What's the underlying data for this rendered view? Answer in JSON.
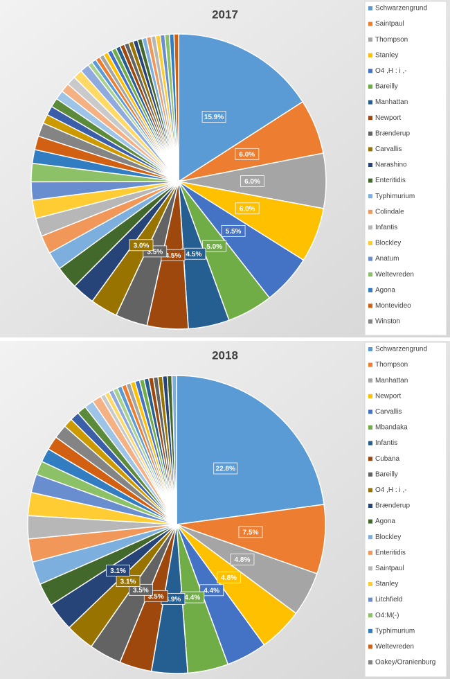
{
  "chart_data": [
    {
      "type": "pie",
      "title": "2017",
      "legend": "right",
      "categories": [
        "Schwarzengrund",
        "Saintpaul",
        "Thompson",
        "Stanley",
        "O4 ,H : i ,-",
        "Bareilly",
        "Manhattan",
        "Newport",
        "Brænderup",
        "Carvallis",
        "Narashino",
        "Enteritidis",
        "Typhimurium",
        "Colindale",
        "Infantis",
        "Blockley",
        "Anatum",
        "Weltevreden",
        "Agona",
        "Montevideo",
        "Winston",
        null,
        null,
        null,
        null,
        null,
        null,
        null,
        null,
        null,
        null,
        null,
        null,
        null,
        null,
        null,
        null,
        null,
        null,
        null,
        null,
        null,
        null,
        null,
        null,
        null,
        null,
        null,
        null,
        null
      ],
      "values": [
        15.9,
        6.0,
        6.0,
        6.0,
        5.5,
        5.0,
        4.5,
        4.5,
        3.5,
        3.0,
        2.5,
        2.5,
        2.0,
        2.0,
        2.0,
        2.0,
        2.0,
        2.0,
        1.5,
        1.5,
        1.5,
        1.0,
        1.0,
        1.0,
        1.0,
        1.0,
        1.0,
        1.0,
        1.0,
        0.5,
        0.5,
        0.5,
        0.5,
        0.5,
        0.5,
        0.5,
        0.5,
        0.5,
        0.5,
        0.5,
        0.5,
        0.5,
        0.5,
        0.5,
        0.5,
        0.5,
        0.5,
        0.5,
        0.5,
        0.5
      ],
      "value_labels": [
        "15.9%",
        "6.0%",
        "6.0%",
        "6.0%",
        "5.5%",
        "5.0%",
        "4.5%",
        "4.5%",
        "3.5%",
        "3.0%",
        null,
        null,
        null,
        null,
        null,
        null,
        null,
        null,
        null,
        null,
        null,
        null,
        null,
        null,
        null,
        null,
        null,
        null,
        null,
        null,
        null,
        null,
        null,
        null,
        null,
        null,
        null,
        null,
        null,
        null,
        null,
        null,
        null,
        null,
        null,
        null,
        null,
        null,
        null,
        null
      ]
    },
    {
      "type": "pie",
      "title": "2018",
      "legend": "right",
      "categories": [
        "Schwarzengrund",
        "Thompson",
        "Manhattan",
        "Newport",
        "Carvallis",
        "Mbandaka",
        "Infantis",
        "Cubana",
        "Bareilly",
        "O4 ,H : i ,-",
        "Brænderup",
        "Agona",
        "Blockley",
        "Enteritidis",
        "Saintpaul",
        "Stanley",
        "Litchfield",
        "O4:M(-)",
        "Typhimurium",
        "Weltevreden",
        "Oakey/Oranienburg",
        null,
        null,
        null,
        null,
        null,
        null,
        null,
        null,
        null,
        null,
        null,
        null,
        null,
        null,
        null,
        null,
        null,
        null,
        null,
        null,
        null,
        null
      ],
      "values": [
        22.8,
        7.5,
        4.8,
        4.8,
        4.4,
        4.4,
        3.9,
        3.5,
        3.5,
        3.1,
        3.1,
        2.5,
        2.5,
        2.5,
        2.5,
        2.5,
        2.0,
        1.5,
        1.5,
        1.5,
        1.5,
        1.0,
        1.0,
        1.0,
        1.0,
        1.0,
        0.5,
        0.5,
        0.5,
        0.5,
        0.5,
        0.5,
        0.5,
        0.5,
        0.5,
        0.5,
        0.5,
        0.5,
        0.5,
        0.5,
        0.5,
        0.5,
        0.5
      ],
      "value_labels": [
        "22.8%",
        "7.5%",
        "4.8%",
        "4.8%",
        "4.4%",
        "4.4%",
        "3.9%",
        "3.5%",
        "3.5%",
        "3.1%",
        "3.1%",
        null,
        null,
        null,
        null,
        null,
        null,
        null,
        null,
        null,
        null,
        null,
        null,
        null,
        null,
        null,
        null,
        null,
        null,
        null,
        null,
        null,
        null,
        null,
        null,
        null,
        null,
        null,
        null,
        null,
        null,
        null,
        null
      ]
    }
  ],
  "colors": [
    "#5b9bd5",
    "#ed7d31",
    "#a5a5a5",
    "#ffc000",
    "#4472c4",
    "#70ad47",
    "#255e91",
    "#9e480e",
    "#636363",
    "#997300",
    "#264478",
    "#43682b",
    "#7cafdd",
    "#f1975a",
    "#b7b7b7",
    "#ffcd33",
    "#698ed0",
    "#8cc168",
    "#327dc2",
    "#d26012",
    "#848484",
    "#cc9a00",
    "#3a5fa8",
    "#5a8a3a",
    "#9dc3e6",
    "#f4b183",
    "#c9c9c9",
    "#ffd966",
    "#8faadc",
    "#a9d18e"
  ]
}
